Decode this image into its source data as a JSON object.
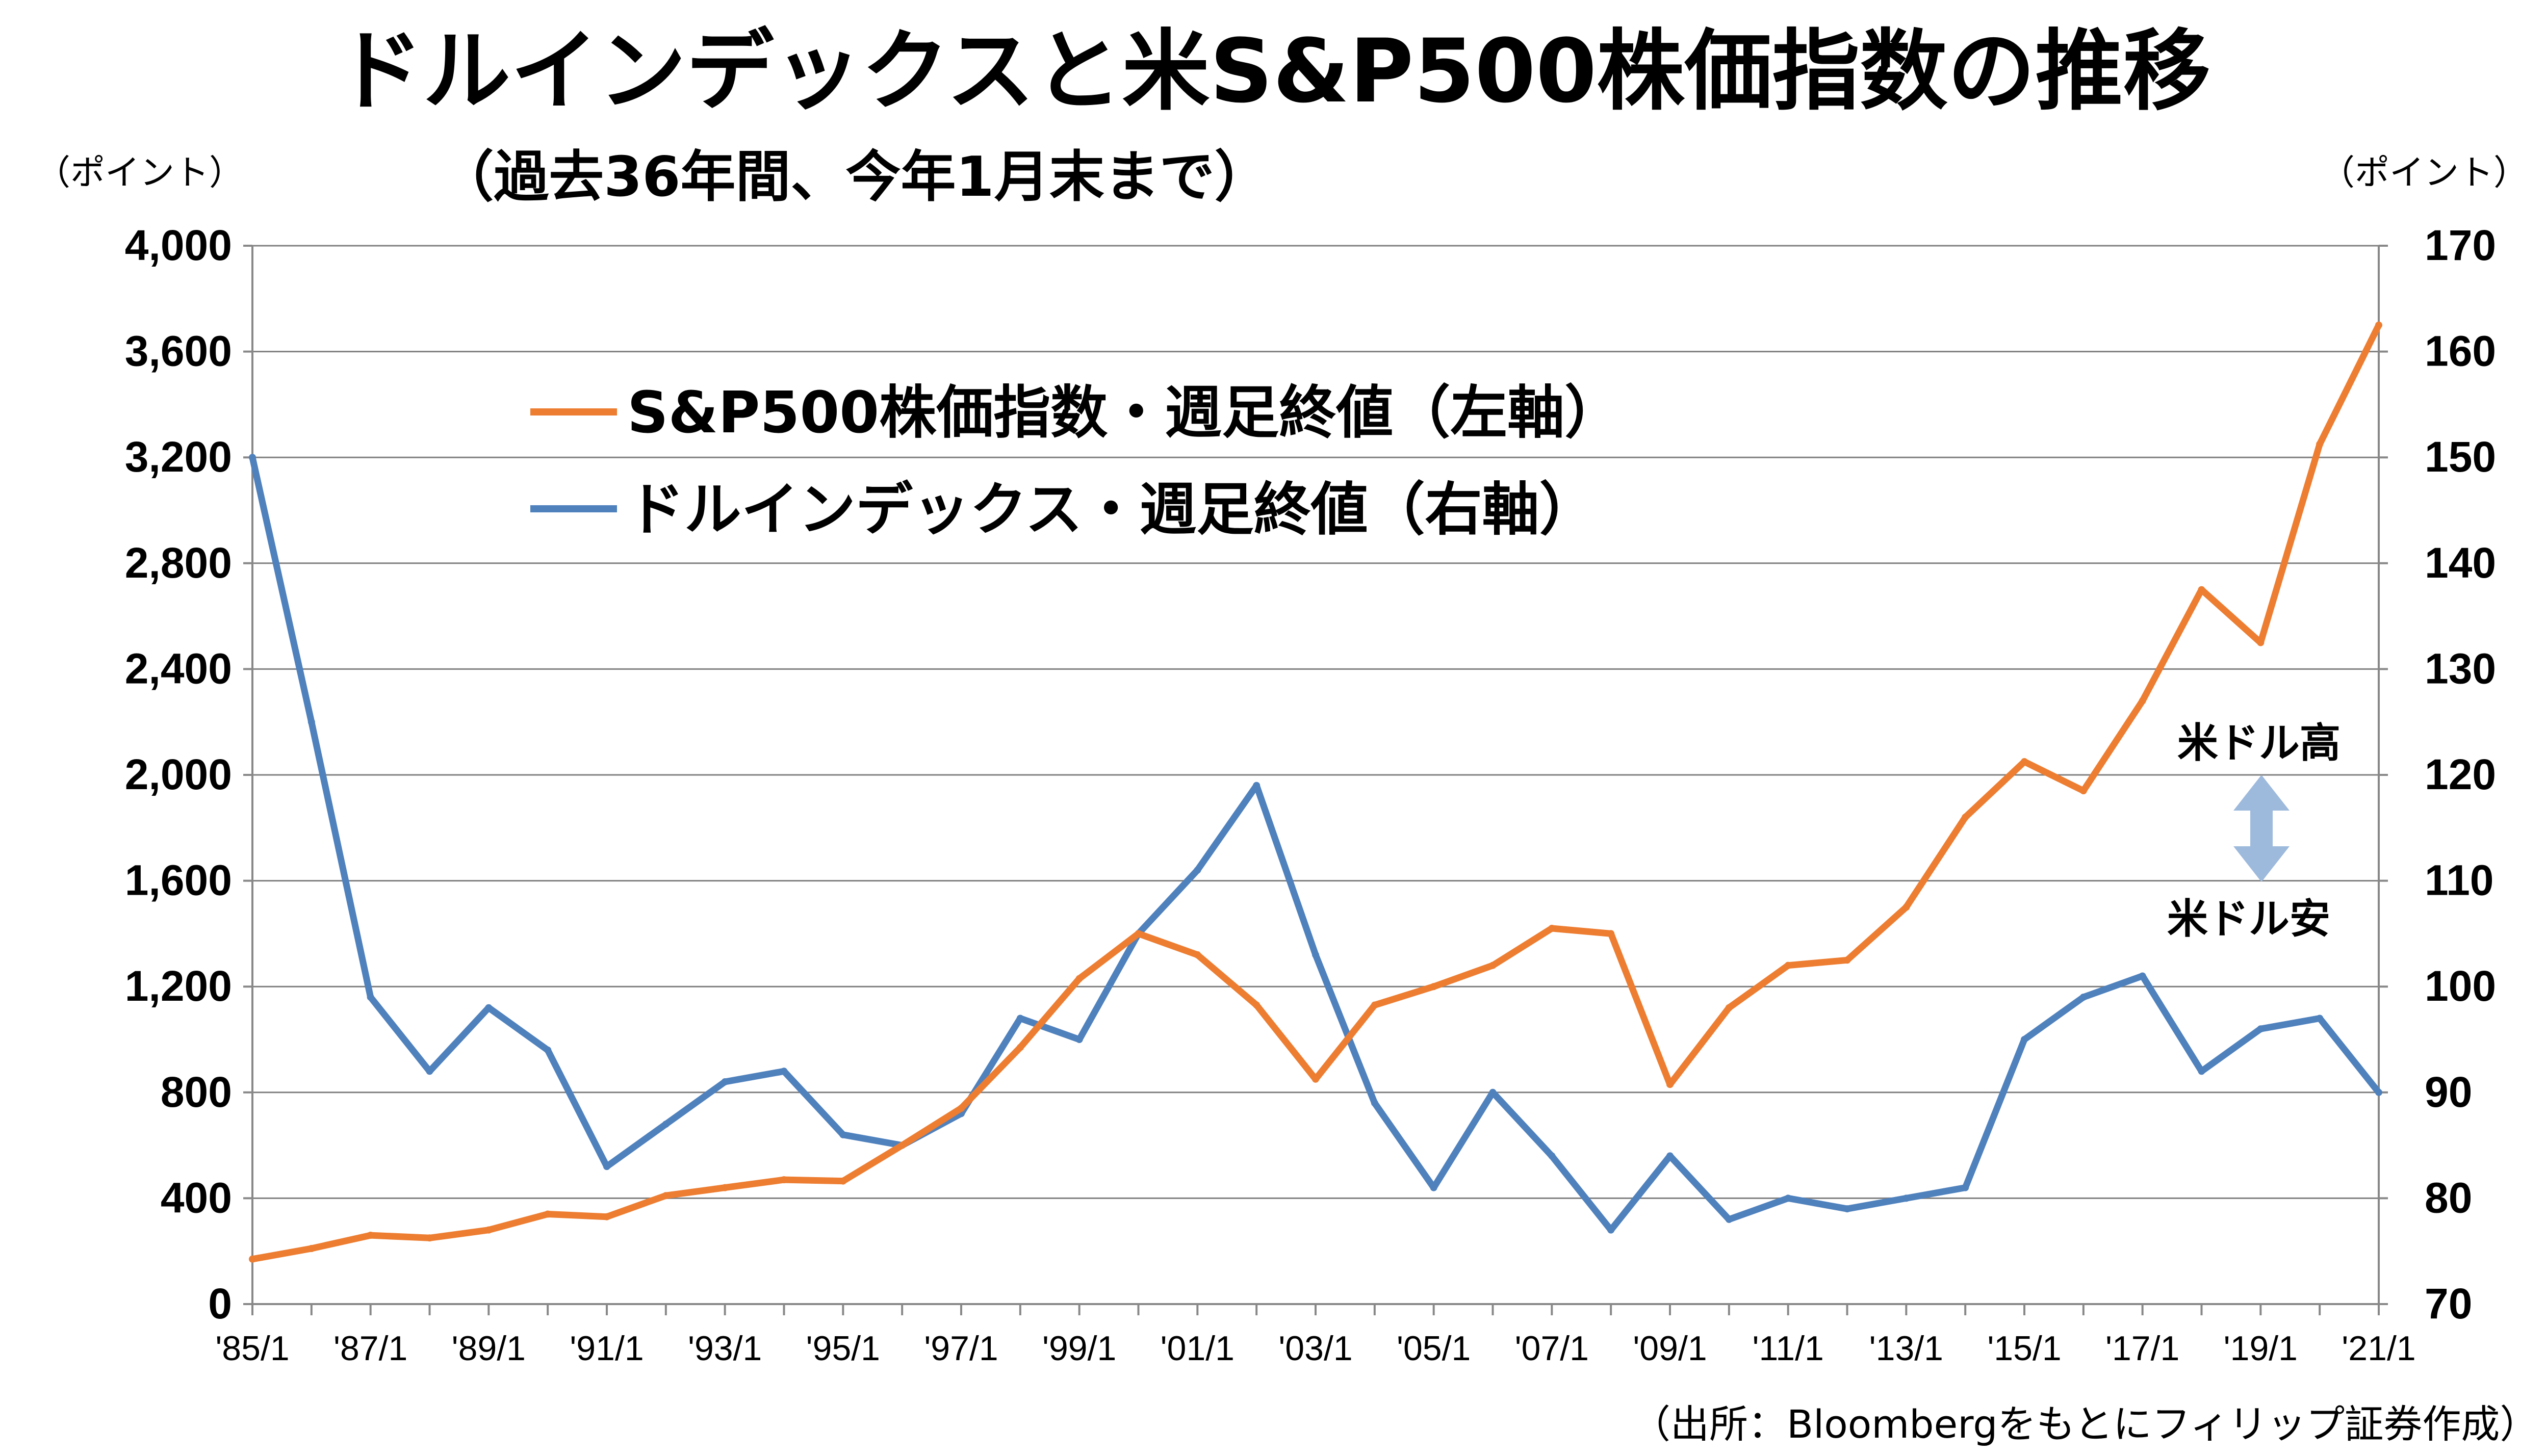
{
  "title": "ドルインデックスと米S&P500株価指数の推移",
  "subtitle": "（過去36年間、今年1月末まで）",
  "unit_left": "（ポイント）",
  "unit_right": "（ポイント）",
  "source": "（出所：Bloombergをもとにフィリップ証券作成）",
  "annotations": {
    "high": "米ドル高",
    "low": "米ドル安"
  },
  "colors": {
    "sp500": "#ED7D31",
    "dxy": "#4F81BD",
    "arrow": "#9DB9DC",
    "grid": "#808080"
  },
  "chart_data": {
    "type": "line",
    "x": [
      "'85/1",
      "'86/1",
      "'87/1",
      "'88/1",
      "'89/1",
      "'90/1",
      "'91/1",
      "'92/1",
      "'93/1",
      "'94/1",
      "'95/1",
      "'96/1",
      "'97/1",
      "'98/1",
      "'99/1",
      "'00/1",
      "'01/1",
      "'02/1",
      "'03/1",
      "'04/1",
      "'05/1",
      "'06/1",
      "'07/1",
      "'08/1",
      "'09/1",
      "'10/1",
      "'11/1",
      "'12/1",
      "'13/1",
      "'14/1",
      "'15/1",
      "'16/1",
      "'17/1",
      "'18/1",
      "'19/1",
      "'20/1",
      "'21/1"
    ],
    "x_tick_labels": [
      "'85/1",
      "'87/1",
      "'89/1",
      "'91/1",
      "'93/1",
      "'95/1",
      "'97/1",
      "'99/1",
      "'01/1",
      "'03/1",
      "'05/1",
      "'07/1",
      "'09/1",
      "'11/1",
      "'13/1",
      "'15/1",
      "'17/1",
      "'19/1",
      "'21/1"
    ],
    "y_left": {
      "ylim": [
        0,
        4000
      ],
      "ticks": [
        "0",
        "400",
        "800",
        "1,200",
        "1,600",
        "2,000",
        "2,400",
        "2,800",
        "3,200",
        "3,600",
        "4,000"
      ]
    },
    "y_right": {
      "ylim": [
        70,
        170
      ],
      "ticks": [
        "70",
        "80",
        "90",
        "100",
        "110",
        "120",
        "130",
        "140",
        "150",
        "160",
        "170"
      ]
    },
    "grid": true,
    "legend_position": "top-left",
    "series": [
      {
        "name": "S&P500株価指数・週足終値（左軸）",
        "axis": "left",
        "values": [
          170,
          210,
          260,
          250,
          280,
          340,
          330,
          410,
          440,
          470,
          465,
          600,
          740,
          970,
          1230,
          1400,
          1320,
          1130,
          850,
          1130,
          1200,
          1280,
          1420,
          1400,
          830,
          1120,
          1280,
          1300,
          1500,
          1840,
          2050,
          1940,
          2280,
          2700,
          2500,
          3250,
          3700
        ]
      },
      {
        "name": "ドルインデックス・週足終値（右軸）",
        "axis": "right",
        "values": [
          150,
          125,
          99,
          92,
          98,
          94,
          83,
          87,
          91,
          92,
          86,
          85,
          88,
          97,
          95,
          105,
          111,
          119,
          103,
          89,
          81,
          90,
          84,
          77,
          84,
          78,
          80,
          79,
          80,
          81,
          95,
          99,
          101,
          92,
          96,
          97,
          90
        ]
      }
    ]
  }
}
